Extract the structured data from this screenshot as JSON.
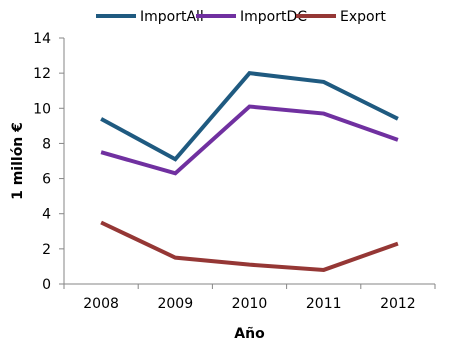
{
  "chart_data": {
    "type": "line",
    "x": [
      2008,
      2009,
      2010,
      2011,
      2012
    ],
    "series": [
      {
        "name": "ImportAll",
        "values": [
          9.4,
          7.1,
          12.0,
          11.5,
          9.4
        ],
        "color": "#1F5A80"
      },
      {
        "name": "ImportDC",
        "values": [
          7.5,
          6.3,
          10.1,
          9.7,
          8.2
        ],
        "color": "#7030A0"
      },
      {
        "name": "Export",
        "values": [
          3.5,
          1.5,
          1.1,
          0.8,
          2.3
        ],
        "color": "#953735"
      }
    ],
    "xlabel": "Año",
    "ylabel": "1 millón €",
    "ylim": [
      0,
      14
    ],
    "yticks": [
      0,
      2,
      4,
      6,
      8,
      10,
      12,
      14
    ],
    "grid": false,
    "legend_position": "top"
  }
}
